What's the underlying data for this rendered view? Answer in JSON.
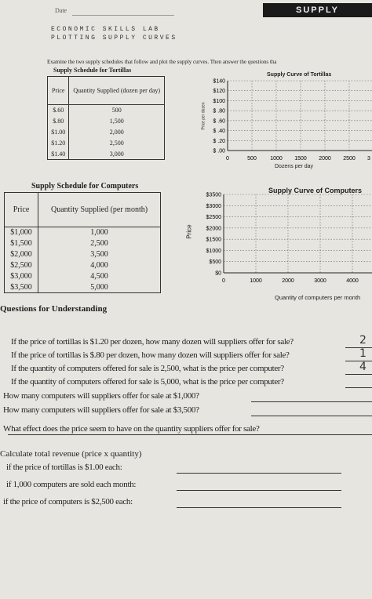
{
  "header": {
    "date_label": "Date",
    "badge": "SUPPLY",
    "title_line1": "ECONOMIC SKILLS LAB",
    "title_line2": "PLOTTING SUPPLY CURVES"
  },
  "instructions": "Examine the two supply schedules that follow and plot the supply curves. Then answer the questions tha",
  "tortilla_table": {
    "title": "Supply Schedule for Tortillas",
    "headers": [
      "Price",
      "Quantity Supplied (dozen per day)"
    ],
    "rows": [
      [
        "$.60",
        "500"
      ],
      [
        "$.80",
        "1,500"
      ],
      [
        "$1.00",
        "2,000"
      ],
      [
        "$1.20",
        "2,500"
      ],
      [
        "$1.40",
        "3,000"
      ]
    ]
  },
  "tortilla_graph": {
    "title": "Supply Curve of Tortillas",
    "y_label": "Price per dozen",
    "y_ticks": [
      "$140",
      "$120",
      "$100",
      "$ .80",
      "$ .60",
      "$ .40",
      "$ .20",
      "$ .00"
    ],
    "x_ticks": [
      "0",
      "500",
      "1000",
      "1500",
      "2000",
      "2500",
      "3"
    ],
    "x_label": "Dozens per day"
  },
  "computer_table": {
    "title": "Supply Schedule for Computers",
    "headers": [
      "Price",
      "Quantity Supplied (per month)"
    ],
    "rows": [
      [
        "$1,000",
        "1,000"
      ],
      [
        "$1,500",
        "2,500"
      ],
      [
        "$2,000",
        "3,500"
      ],
      [
        "$2,500",
        "4,000"
      ],
      [
        "$3,000",
        "4,500"
      ],
      [
        "$3,500",
        "5,000"
      ]
    ]
  },
  "computer_graph": {
    "title": "Supply Curve of Computers",
    "y_label": "Price",
    "y_ticks": [
      "$3500",
      "$3000",
      "$2500",
      "$2000",
      "$1500",
      "$1000",
      "$500",
      "$0"
    ],
    "x_ticks": [
      "0",
      "1000",
      "2000",
      "3000",
      "4000"
    ],
    "x_label": "Quantity of computers per month"
  },
  "questions": {
    "heading": "Questions for Understanding",
    "items": [
      {
        "text": "If the price of tortillas is $1.20 per dozen, how many dozen will suppliers offer for sale?",
        "answer": "2"
      },
      {
        "text": "If the price of tortillas is $.80 per dozen, how many dozen will suppliers offer for sale?",
        "answer": "1"
      },
      {
        "text": "If the quantity of computers offered for sale is 2,500, what is the price per computer?",
        "answer": "4"
      },
      {
        "text": "If the quantity of computers offered for sale is 5,000, what is the price per computer?"
      },
      {
        "text": "How many computers will suppliers offer for sale at $1,000?"
      },
      {
        "text": "How many computers will suppliers offer for sale at $3,500?"
      },
      {
        "text": "What effect does the price seem to have on the quantity suppliers offer for sale?"
      }
    ]
  },
  "revenue": {
    "heading": "Calculate total revenue (price x quantity)",
    "items": [
      "if the price of tortillas is $1.00 each:",
      "if 1,000 computers are sold each month:",
      "if the price of computers is $2,500 each:"
    ]
  }
}
